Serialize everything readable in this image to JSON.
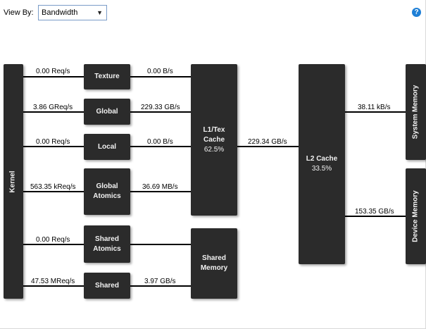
{
  "toolbar": {
    "view_by_label": "View By:",
    "view_by_value": "Bandwidth",
    "help_glyph": "?"
  },
  "nodes": {
    "kernel": "Kernel",
    "texture": "Texture",
    "global": "Global",
    "local": "Local",
    "global_atomics_1": "Global",
    "global_atomics_2": "Atomics",
    "shared_atomics_1": "Shared",
    "shared_atomics_2": "Atomics",
    "shared": "Shared",
    "l1_1": "L1/Tex",
    "l1_2": "Cache",
    "l1_pct": "62.5%",
    "shared_mem_1": "Shared",
    "shared_mem_2": "Memory",
    "l2_1": "L2 Cache",
    "l2_pct": "33.5%",
    "system_memory": "System Memory",
    "device_memory": "Device Memory"
  },
  "rates": {
    "kernel_texture": "0.00 Req/s",
    "kernel_global": "3.86 GReq/s",
    "kernel_local": "0.00 Req/s",
    "kernel_global_atomics": "563.35 kReq/s",
    "kernel_shared_atomics": "0.00 Req/s",
    "kernel_shared": "47.53 MReq/s",
    "texture_l1": "0.00 B/s",
    "global_l1": "229.33 GB/s",
    "local_l1": "0.00 B/s",
    "global_atomics_l1": "36.69 MB/s",
    "shared_shared_mem": "3.97 GB/s",
    "l1_l2": "229.34 GB/s",
    "l2_system": "38.11 kB/s",
    "l2_device": "153.35 GB/s"
  },
  "colors": {
    "box": "#2b2b2b",
    "box_text": "#f2f2f2",
    "line": "#000000",
    "help_icon": "#1e7fd6",
    "select_border": "#7a9cc8"
  },
  "icons": {
    "help": "help-icon",
    "dropdown": "chevron-down-icon"
  }
}
